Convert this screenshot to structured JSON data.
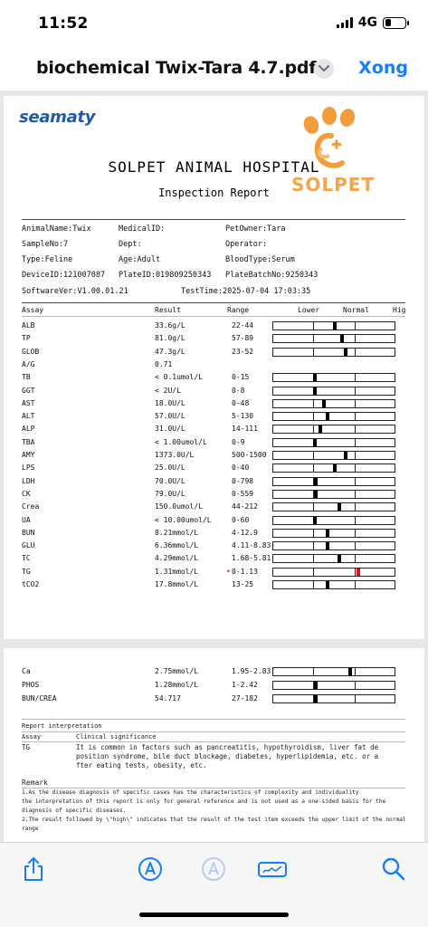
{
  "status_bar": {
    "time": "11:52",
    "network": "4G"
  },
  "nav": {
    "title": "biochemical Twix-Tara 4.7.pdf",
    "done_label": "Xong"
  },
  "doc": {
    "brand": "seamaty",
    "logo_text": "SOLPET",
    "hospital": "SOLPET ANIMAL HOSPITAL",
    "subtitle": "Inspection Report",
    "info": {
      "animal_name": "AnimalName:Twix",
      "medical_id": "MedicalID:",
      "pet_owner": "PetOwner:Tara",
      "sample_no": "SampleNo:7",
      "dept": "Dept:",
      "operator": "Operator:",
      "type": "Type:Feline",
      "age": "Age:Adult",
      "blood_type": "BloodType:Serum",
      "device_id": "DeviceID:121007087",
      "plate_id": "PlateID:019809250343",
      "plate_batch": "PlateBatchNo:9250343",
      "software": "SoftwareVer:V1.00.01.21",
      "test_time": "TestTime:2025-07-04 17:03:35"
    },
    "columns": {
      "assay": "Assay",
      "result": "Result",
      "range": "Range",
      "lower": "Lower",
      "normal": "Normal",
      "high": "Hig"
    },
    "rows": [
      {
        "assay": "ALB",
        "result": "33.6g/L",
        "range": "22-44",
        "level": 0.5
      },
      {
        "assay": "TP",
        "result": "81.0g/L",
        "range": "57-89",
        "level": 0.56
      },
      {
        "assay": "GLOB",
        "result": "47.3g/L",
        "range": "23-52",
        "level": 0.59
      },
      {
        "assay": "A/G",
        "result": "0.71",
        "range": "",
        "level": null
      },
      {
        "assay": "TB",
        "result": "< 0.1umol/L",
        "range": "0-15",
        "level": 0.33
      },
      {
        "assay": "GGT",
        "result": "< 2U/L",
        "range": "0-8",
        "level": 0.33
      },
      {
        "assay": "AST",
        "result": "18.0U/L",
        "range": "0-48",
        "level": 0.41
      },
      {
        "assay": "ALT",
        "result": "57.0U/L",
        "range": "5-130",
        "level": 0.44
      },
      {
        "assay": "ALP",
        "result": "31.0U/L",
        "range": "14-111",
        "level": 0.38
      },
      {
        "assay": "TBA",
        "result": "< 1.00umol/L",
        "range": "0-9",
        "level": 0.33
      },
      {
        "assay": "AMY",
        "result": "1373.0U/L",
        "range": "500-1500",
        "level": 0.59
      },
      {
        "assay": "LPS",
        "result": "25.0U/L",
        "range": "0-40",
        "level": 0.5
      },
      {
        "assay": "LDH",
        "result": "70.0U/L",
        "range": "0-798",
        "level": 0.34
      },
      {
        "assay": "CK",
        "result": "79.0U/L",
        "range": "0-559",
        "level": 0.34
      },
      {
        "assay": "Crea",
        "result": "150.0umol/L",
        "range": "44-212",
        "level": 0.54
      },
      {
        "assay": "UA",
        "result": "< 10.00umol/L",
        "range": "0-60",
        "level": 0.33
      },
      {
        "assay": "BUN",
        "result": "8.21mmol/L",
        "range": "4-12.9",
        "level": 0.44
      },
      {
        "assay": "GLU",
        "result": "6.36mmol/L",
        "range": "4.11-8.83",
        "level": 0.44
      },
      {
        "assay": "TC",
        "result": "4.29mmol/L",
        "range": "1.68-5.81",
        "level": 0.54
      },
      {
        "assay": "TG",
        "result": "1.31mmol/L",
        "range": "0-1.13",
        "level": 0.7,
        "flag": "•",
        "flag_color": "#e01010"
      },
      {
        "assay": "tCO2",
        "result": "17.8mmol/L",
        "range": "13-25",
        "level": 0.44
      }
    ],
    "rows2": [
      {
        "assay": "Ca",
        "result": "2.75mmol/L",
        "range": "1.95-2.83",
        "level": 0.63
      },
      {
        "assay": "PHOS",
        "result": "1.28mmol/L",
        "range": "1-2.42",
        "level": 0.34
      },
      {
        "assay": "BUN/CREA",
        "result": "54.717",
        "range": "27-182",
        "level": 0.34
      }
    ],
    "interpretation": {
      "heading": "Report interpretation",
      "col_assay": "Assay",
      "col_sig": "Clinical significance",
      "item": "TG",
      "lines": [
        "It is common in factors such as pancreatitis, hypothyroidism, liver fat de",
        "position syndrome, bile duct blockage, diabetes, hyperlipidemia, etc. or a",
        "fter eating tests, obesity, etc."
      ]
    },
    "remark": {
      "heading": "Remark",
      "lines": [
        "1.As the disease diagnosis of specific cases has the characteristics of complexity and individuality",
        " the interpretation of this report is only for general reference and is not used as a one-sided basis for the",
        "diagnosis of specific diseases.",
        "2.The result followed by \\\"high\\\" indicates that the result of the test item exceeds the upper limit of the normal",
        "range"
      ]
    }
  },
  "toolbar": {
    "icons": [
      "share-icon",
      "markup-icon",
      "markup-icon-disabled",
      "signature-icon",
      "search-icon"
    ]
  }
}
